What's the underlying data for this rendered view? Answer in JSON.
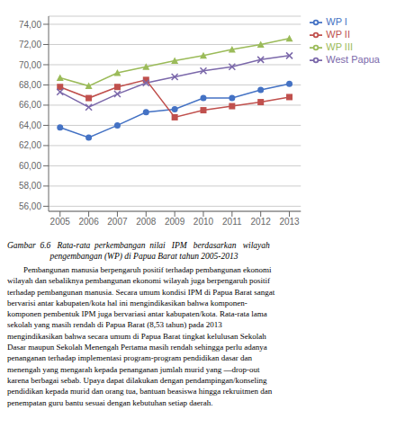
{
  "chart_data": {
    "type": "line",
    "x": [
      2005,
      2006,
      2007,
      2008,
      2009,
      2010,
      2011,
      2012,
      2013
    ],
    "xlim": [
      2004.6,
      2013.4
    ],
    "xticks": [
      2005,
      2006,
      2007,
      2008,
      2009,
      2010,
      2011,
      2012,
      2013
    ],
    "ylim": [
      55.5,
      74.8
    ],
    "yticks": [
      {
        "value": 56.0,
        "label": "56,00"
      },
      {
        "value": 58.0,
        "label": "58,00"
      },
      {
        "value": 60.0,
        "label": "60,00"
      },
      {
        "value": 62.0,
        "label": "62,00"
      },
      {
        "value": 64.0,
        "label": "64,00"
      },
      {
        "value": 66.0,
        "label": "66,00"
      },
      {
        "value": 68.0,
        "label": "68,00"
      },
      {
        "value": 70.0,
        "label": "70,00"
      },
      {
        "value": 72.0,
        "label": "72,00"
      },
      {
        "value": 74.0,
        "label": "74,00"
      }
    ],
    "grid": "y",
    "legend": "right",
    "series": [
      {
        "name": "WP I",
        "color": "#4472C4",
        "marker": "circle",
        "values": [
          63.8,
          62.8,
          64.0,
          65.3,
          65.6,
          66.7,
          66.7,
          67.5,
          68.1
        ]
      },
      {
        "name": "WP II",
        "color": "#C0504D",
        "marker": "square",
        "values": [
          67.8,
          66.7,
          67.8,
          68.5,
          64.8,
          65.5,
          65.9,
          66.3,
          66.8
        ]
      },
      {
        "name": "WP III",
        "color": "#9BBB59",
        "marker": "triangle",
        "values": [
          68.7,
          67.9,
          69.2,
          69.8,
          70.4,
          70.9,
          71.5,
          72.0,
          72.6
        ]
      },
      {
        "name": "West Papua",
        "color": "#7B68AA",
        "marker": "x",
        "values": [
          67.3,
          65.8,
          67.1,
          68.2,
          68.8,
          69.4,
          69.8,
          70.5,
          70.9
        ]
      }
    ],
    "annotations": [
      "Gambar  6.6   Rata-rata  perkembangan  nilai   IPM   berdasarkan   wilayah",
      "                    pengembangan (WP) di Papua Barat tahun 2005-2013",
      "        Pembangunan manusia berpengaruh positif terhadap pembangunan ekonomi",
      "wilayah dan sebaliknya pembangunan ekonomi wilayah juga berpengaruh positif",
      "terhadap pembangunan manusia. Secara umum kondisi IPM di Papua Barat sangat",
      "bervarisi antar kabupaten/kota hal ini mengindikasikan bahwa komponen-",
      "komponen pembentuk IPM juga bervariasi antar kabupaten/kota. Rata-rata lama",
      "sekolah yang masih rendah di Papua Barat (8,53 tahun) pada 2013",
      "mengindikasikan bahwa secara umum di Papua Barat tingkat kelulusan Sekolah",
      "Dasar maupun Sekolah Menengah Pertama masih rendah sehingga perlu adanya",
      "penanganan terhadap implementasi program-program pendidikan dasar dan",
      "menengah yang mengarah kepada penanganan jumlah murid yang —drop-out",
      "karena berbagai sebab. Upaya dapat dilakukan dengan pendampingan/konseling",
      "pendidikan kepada murid dan orang tua, bantuan beasiswa hingga rekruitmen dan",
      "penempatan guru bantu sesuai dengan kebutuhan setiap daerah."
    ]
  }
}
